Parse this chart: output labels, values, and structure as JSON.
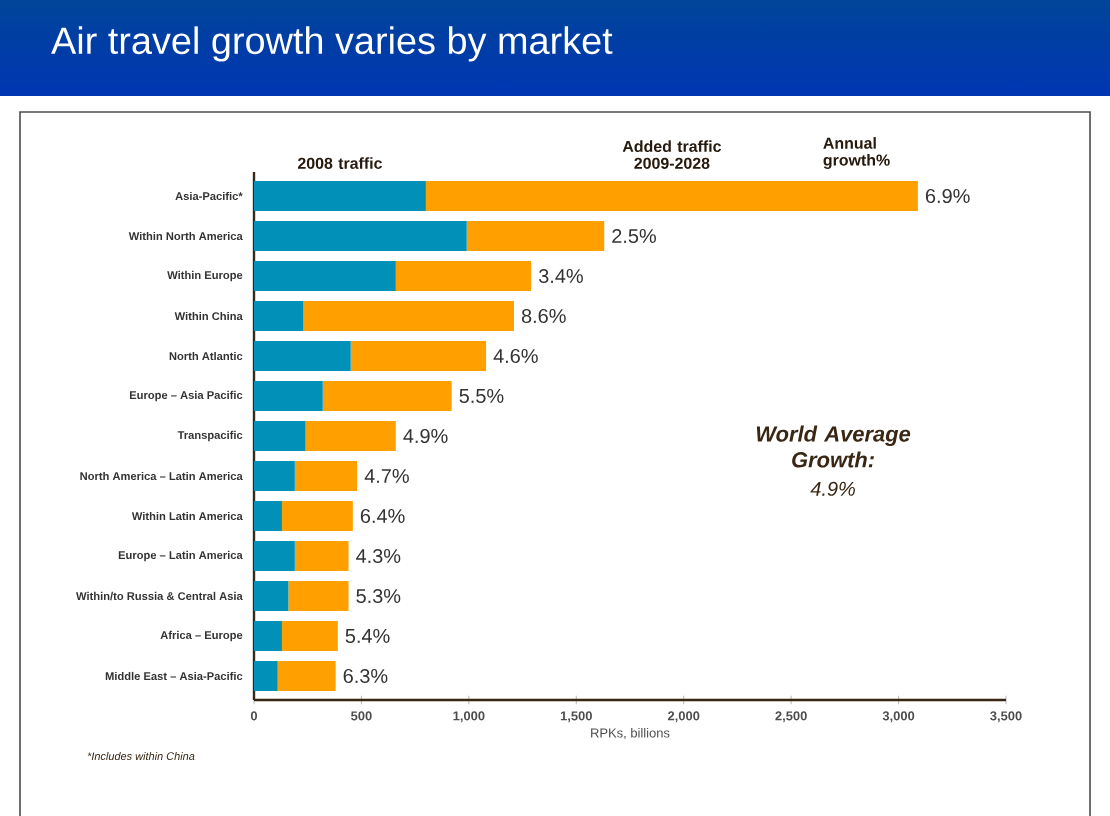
{
  "chart_data": {
    "type": "bar",
    "orientation": "horizontal",
    "stacked": true,
    "title": "Air travel growth varies by market",
    "xlabel": "RPKs, billions",
    "categories": [
      "Asia-Pacific*",
      "Within North America",
      "Within Europe",
      "Within China",
      "North Atlantic",
      "Europe – Asia Pacific",
      "Transpacific",
      "North America – Latin America",
      "Within Latin America",
      "Europe – Latin America",
      "Within/to Russia & Central Asia",
      "Africa – Europe",
      "Middle East – Asia-Pacific"
    ],
    "series": [
      {
        "name": "2008 traffic",
        "color": "#0090b8",
        "values": [
          800,
          990,
          660,
          230,
          450,
          320,
          240,
          190,
          130,
          190,
          160,
          130,
          110
        ]
      },
      {
        "name": "Added traffic 2009-2028",
        "color": "#ffa000",
        "values": [
          2290,
          640,
          630,
          980,
          630,
          600,
          420,
          290,
          330,
          250,
          280,
          260,
          270
        ]
      }
    ],
    "xlim": [
      0,
      3500
    ],
    "xticks": [
      0,
      500,
      {
        "value": 1000,
        "label": "1,000"
      },
      {
        "value": 1500,
        "label": "1,500"
      },
      {
        "value": 2000,
        "label": "2,000"
      },
      {
        "value": 2500,
        "label": "2,500"
      },
      {
        "value": 3000,
        "label": "3,000"
      },
      {
        "value": 3500,
        "label": "3,500"
      }
    ],
    "annotations": [
      "Annual growth%",
      "World Average Growth:",
      "4.9%",
      "*Includes within China",
      {
        "text": "6.9%",
        "x": 3090,
        "y": "Asia-Pacific*"
      },
      {
        "text": "2.5%",
        "x": 1630,
        "y": "Within North America"
      },
      {
        "text": "3.4%",
        "x": 1290,
        "y": "Within Europe"
      },
      {
        "text": "8.6%",
        "x": 1210,
        "y": "Within China"
      },
      {
        "text": "4.6%",
        "x": 1080,
        "y": "North Atlantic"
      },
      {
        "text": "5.5%",
        "x": 920,
        "y": "Europe – Asia Pacific"
      },
      {
        "text": "4.9%",
        "x": 660,
        "y": "Transpacific"
      },
      {
        "text": "4.7%",
        "x": 480,
        "y": "North America – Latin America"
      },
      {
        "text": "6.4%",
        "x": 460,
        "y": "Within Latin America"
      },
      {
        "text": "4.3%",
        "x": 440,
        "y": "Europe – Latin America"
      },
      {
        "text": "5.3%",
        "x": 440,
        "y": "Within/to Russia & Central Asia"
      },
      {
        "text": "5.4%",
        "x": 390,
        "y": "Africa – Europe"
      },
      {
        "text": "6.3%",
        "x": 380,
        "y": "Middle East – Asia-Pacific"
      }
    ],
    "legend": false,
    "grid": false
  }
}
